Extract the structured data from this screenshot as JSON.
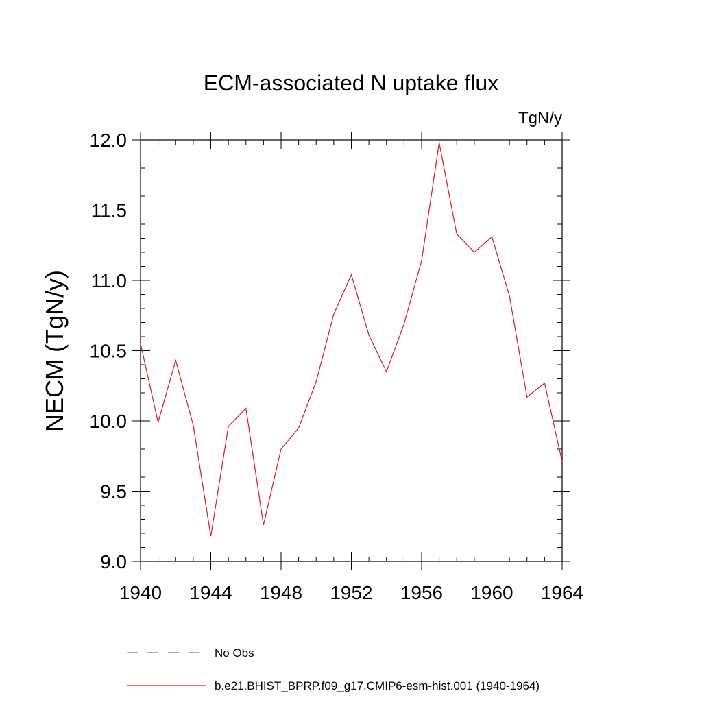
{
  "chart_data": {
    "type": "line",
    "title": "ECM-associated N uptake flux",
    "units": "TgN/y",
    "xlabel": "",
    "ylabel": "NECM  (TgN/y)",
    "xlim": [
      1940,
      1964
    ],
    "ylim": [
      9.0,
      12.0
    ],
    "x_ticks": [
      1940,
      1944,
      1948,
      1952,
      1956,
      1960,
      1964
    ],
    "x_tick_labels": [
      "1940",
      "1944",
      "1948",
      "1952",
      "1956",
      "1960",
      "1964"
    ],
    "y_ticks": [
      9.0,
      9.5,
      10.0,
      10.5,
      11.0,
      11.5,
      12.0
    ],
    "y_tick_labels": [
      "9.0",
      "9.5",
      "10.0",
      "10.5",
      "11.0",
      "11.5",
      "12.0"
    ],
    "legend_position": "bottom",
    "series": [
      {
        "name": "No Obs",
        "style": "dashed",
        "color": "#7b6fc8",
        "x": [],
        "values": []
      },
      {
        "name": "b.e21.BHIST_BPRP.f09_g17.CMIP6-esm-hist.001 (1940-1964)",
        "style": "solid",
        "color": "#e8111e",
        "x": [
          1940,
          1941,
          1942,
          1943,
          1944,
          1945,
          1946,
          1947,
          1948,
          1949,
          1950,
          1951,
          1952,
          1953,
          1954,
          1955,
          1956,
          1957,
          1958,
          1959,
          1960,
          1961,
          1962,
          1963,
          1964
        ],
        "values": [
          10.55,
          9.99,
          10.43,
          9.97,
          9.18,
          9.96,
          10.09,
          9.26,
          9.8,
          9.95,
          10.28,
          10.76,
          11.04,
          10.61,
          10.35,
          10.69,
          11.14,
          11.98,
          11.33,
          11.2,
          11.31,
          10.89,
          10.17,
          10.27,
          9.71
        ]
      }
    ]
  }
}
